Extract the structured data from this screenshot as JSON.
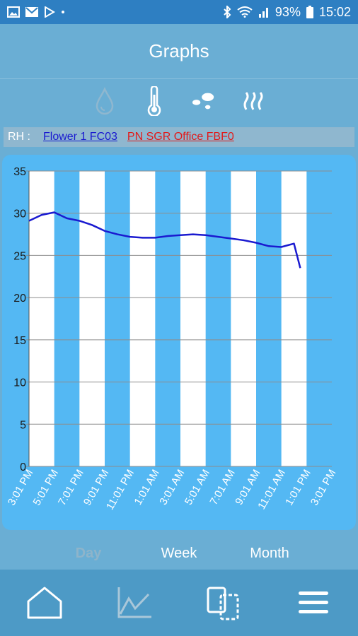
{
  "statusbar": {
    "battery": "93%",
    "time": "15:02",
    "left_icons": [
      "photo-icon",
      "mail-icon",
      "play-store-icon",
      "dot-icon"
    ],
    "right_icons": [
      "bluetooth-icon",
      "wifi-icon",
      "signal-icon",
      "battery-icon"
    ]
  },
  "header": {
    "title": "Graphs"
  },
  "type_icons": [
    "humidity-drop-icon",
    "thermometer-icon",
    "dew-point-icon",
    "heat-waves-icon"
  ],
  "legend": {
    "label": "RH :",
    "series1": "Flower 1 FC03",
    "series2": "PN SGR Office FBF0",
    "series1_color": "#1a1ad0",
    "series2_color": "#e21a1a"
  },
  "chart_data": {
    "type": "line",
    "ylim": [
      0,
      35
    ],
    "yticks": [
      0,
      5,
      10,
      15,
      20,
      25,
      30,
      35
    ],
    "xticks": [
      "3:01 PM",
      "5:01 PM",
      "7:01 PM",
      "9:01 PM",
      "11:01 PM",
      "1:01 AM",
      "3:01 AM",
      "5:01 AM",
      "7:01 AM",
      "9:01 AM",
      "11:01 AM",
      "1:01 PM",
      "3:01 PM"
    ],
    "series": [
      {
        "name": "Flower 1 FC03",
        "color": "#1a1ad0",
        "x": [
          0,
          0.5,
          1,
          1.5,
          2,
          2.5,
          3,
          3.5,
          4,
          4.5,
          5,
          5.5,
          6,
          6.5,
          7,
          7.5,
          8,
          8.5,
          9,
          9.5,
          10,
          10.5,
          10.75
        ],
        "y": [
          29.1,
          29.8,
          30.1,
          29.4,
          29.1,
          28.6,
          27.9,
          27.5,
          27.2,
          27.1,
          27.1,
          27.3,
          27.4,
          27.5,
          27.4,
          27.2,
          27.0,
          26.8,
          26.5,
          26.1,
          26.0,
          26.4,
          23.5
        ]
      }
    ]
  },
  "period_tabs": {
    "day": "Day",
    "week": "Week",
    "month": "Month",
    "active": "Day"
  },
  "bottom_nav": [
    "home-icon",
    "graph-icon",
    "devices-icon",
    "menu-icon"
  ]
}
